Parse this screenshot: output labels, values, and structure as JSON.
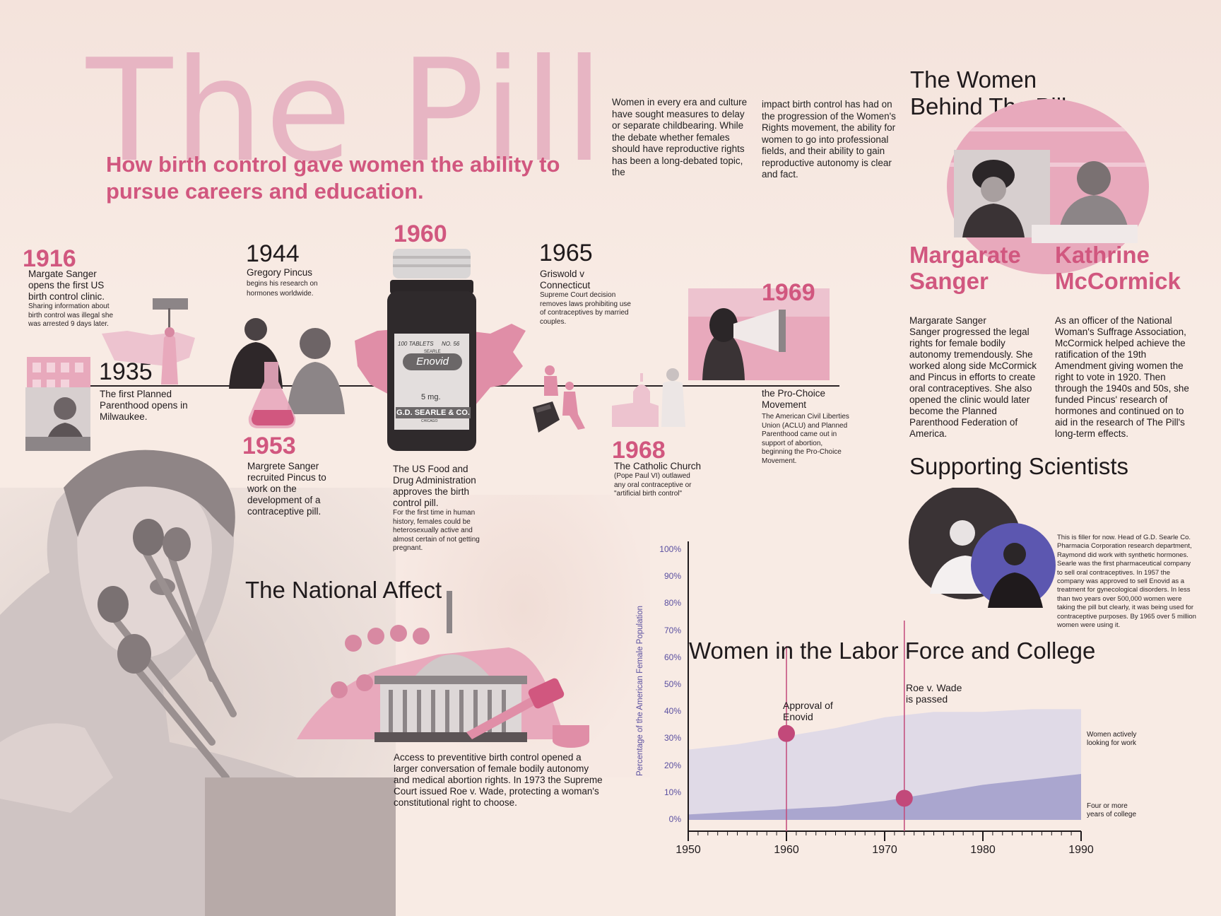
{
  "title": "The Pill",
  "subtitle": "How birth control gave women the ability to pursue careers and education.",
  "intro": {
    "col1": "Women in every era and culture have sought measures to delay or separate childbearing. While the debate whether females should have reproductive rights has been a long-debated topic, the",
    "col2": "impact birth control has had on the progression of the Women's Rights movement, the ability for women to go into professional fields, and their ability to gain reproductive autonomy is clear and fact."
  },
  "timeline": {
    "e1916": {
      "year": "1916",
      "main": "Margate Sanger opens the first US birth control clinic.",
      "detail": "Sharing information about birth control was illegal she was arrested 9 days later."
    },
    "e1935": {
      "year": "1935",
      "main": "The first Planned Parenthood opens in Milwaukee."
    },
    "e1944": {
      "year": "1944",
      "main": "Gregory Pincus",
      "detail": "begins his research on hormones worldwide."
    },
    "e1953": {
      "year": "1953",
      "main": "Margrete Sanger recruited Pincus to work on the development of a contraceptive pill."
    },
    "e1960": {
      "year": "1960",
      "main": "The US Food and Drug Administration approves the birth control pill.",
      "detail": "For the first time in human history, females could be heterosexually active and almost certain of not getting pregnant."
    },
    "e1965": {
      "year": "1965",
      "main": "Griswold v Connecticut",
      "detail": "Supreme Court decision removes laws prohibiting use of contraceptives by married couples."
    },
    "e1968": {
      "year": "1968",
      "main": "The Catholic Church",
      "detail": "(Pope Paul VI) outlawed any oral contraceptive or \"artificial birth control\""
    },
    "e1969": {
      "year": "1969",
      "main": "the Pro-Choice Movement",
      "detail": "The American Civil Liberties Union (ACLU) and Planned Parenthood came out in support of abortion, beginning the Pro-Choice Movement."
    }
  },
  "bottle": {
    "tablets": "100 TABLETS",
    "no": "NO. 56",
    "brand": "SEARLE",
    "name": "Enovid",
    "dose": "5 mg.",
    "maker": "G.D. SEARLE & CO.",
    "city": "CHICAGO"
  },
  "women": {
    "heading": "The Women Behind The Pill",
    "sanger_name": "Margarate Sanger",
    "sanger_bio": "Margarate Sanger\nSanger progressed the legal rights for female bodily autonomy tremendously. She worked along side McCormick and Pincus in efforts to create oral contraceptives. She also opened the clinic would later become the Planned Parenthood Federation of America.",
    "mccormick_name": "Kathrine McCormick",
    "mccormick_bio": "As an officer of the National Woman's Suffrage Association, McCormick helped achieve the ratification of the 19th Amendment giving women the right to vote in 1920. Then through the 1940s and 50s, she funded Pincus' research of hormones and continued on to aid in the research of The Pill's long-term effects."
  },
  "scientists": {
    "heading": "Supporting Scientists",
    "text": "This is filler for now. Head of G.D. Searle Co. Pharmacia Corporation research department, Raymond did work with synthetic hormones. Searle was the first pharmaceutical company to sell oral contraceptives. In 1957 the company was approved to sell Enovid as a treatment for gynecological disorders. In less than two years over 500,000 women were taking the pill but clearly, it was being used for contraceptive purposes. By 1965 over 5 million women were using it."
  },
  "national": {
    "heading": "The National Affect",
    "text": "Access to preventitive birth control opened a larger conversation of female bodily autonomy and medical abortion rights. In 1973 the Supreme Court issued Roe v. Wade, protecting a woman's constitutional right to choose."
  },
  "chart_data": {
    "type": "area",
    "title": "Women in the Labor Force and College",
    "xlabel": "",
    "ylabel": "Percentage of the American Female Population",
    "xlim": [
      1950,
      1990
    ],
    "ylim": [
      0,
      100
    ],
    "x_ticks": [
      "1950",
      "1960",
      "1970",
      "1980",
      "1990"
    ],
    "y_ticks": [
      "0%",
      "10%",
      "20%",
      "30%",
      "40%",
      "50%",
      "60%",
      "70%",
      "80%",
      "90%",
      "100%"
    ],
    "x": [
      1950,
      1955,
      1960,
      1965,
      1970,
      1975,
      1980,
      1985,
      1990
    ],
    "series": [
      {
        "name": "Women actively looking for work",
        "values": [
          26,
          28,
          31,
          34,
          38,
          40,
          40,
          41,
          41
        ],
        "color": "#dcd7e8"
      },
      {
        "name": "Four or more years of college",
        "values": [
          2,
          3,
          4,
          5,
          7,
          10,
          13,
          15,
          17
        ],
        "color": "#a7a3cd"
      }
    ],
    "annotations": [
      {
        "label": "Approval of Enovid",
        "x": 1960,
        "y": 32
      },
      {
        "label": "Roe v. Wade is passed",
        "x": 1972,
        "y": 8
      }
    ],
    "grid": false
  }
}
